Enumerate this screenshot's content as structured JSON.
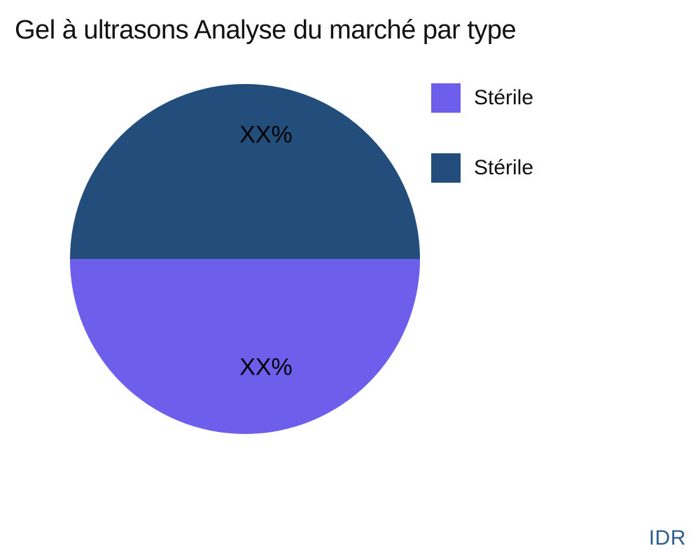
{
  "title": "Gel à ultrasons Analyse du marché par type",
  "watermark": "IDR",
  "chart_data": {
    "type": "pie",
    "title": "Gel à ultrasons Analyse du marché par type",
    "slices": [
      {
        "label": "Stérile",
        "value": 50,
        "display_value": "XX%",
        "color": "#6d5fec",
        "half": "bottom"
      },
      {
        "label": "Stérile",
        "value": 50,
        "display_value": "XX%",
        "color": "#234e7b",
        "half": "top"
      }
    ],
    "values_masked": true,
    "legend_position": "upper right",
    "legend_entries": [
      "Stérile",
      "Stérile"
    ]
  },
  "legend": {
    "items": [
      {
        "label": "Stérile",
        "color": "#6d5fec"
      },
      {
        "label": "Stérile",
        "color": "#234e7b"
      }
    ]
  },
  "colors": {
    "slice_top": "#234e7b",
    "slice_bottom": "#6d5fec",
    "watermark": "#2e5e8c",
    "background": "#ffffff"
  }
}
